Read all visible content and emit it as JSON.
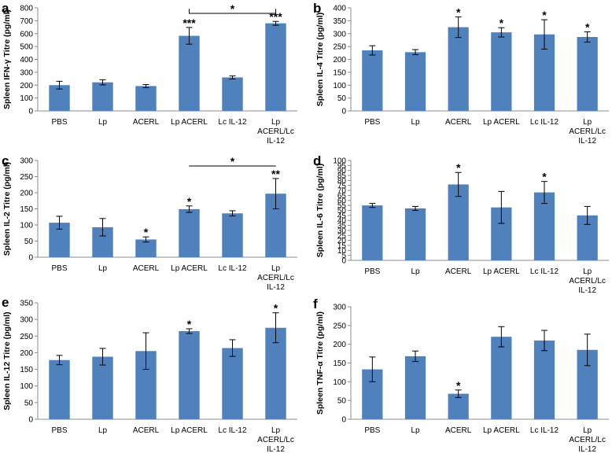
{
  "chart_data": [
    {
      "panel": "a",
      "type": "bar",
      "ylabel": "Spleen IFN-γ Titre (pg/ml)",
      "ylim": [
        0,
        800
      ],
      "yticks": [
        "0",
        "100",
        "200",
        "300",
        "400",
        "500",
        "600",
        "700",
        "800"
      ],
      "categories": [
        [
          "PBS"
        ],
        [
          "Lp"
        ],
        [
          "ACERL"
        ],
        [
          "Lp ACERL"
        ],
        [
          "Lc IL-12"
        ],
        [
          "Lp",
          "ACERL/Lc",
          "IL-12"
        ]
      ],
      "values": [
        200,
        222,
        193,
        583,
        260,
        680
      ],
      "errors": [
        30,
        20,
        12,
        65,
        12,
        15
      ],
      "stars": [
        "",
        "",
        "",
        "***",
        "",
        "***"
      ],
      "bracket": {
        "from": 3,
        "to": 5,
        "label": "*"
      },
      "color": "#4f81bd"
    },
    {
      "panel": "b",
      "type": "bar",
      "ylabel": "Spleen IL-4 Titre (pg/ml)",
      "ylim": [
        0,
        400
      ],
      "yticks": [
        "0",
        "50",
        "100",
        "150",
        "200",
        "250",
        "300",
        "350",
        "400"
      ],
      "categories": [
        [
          "PBS"
        ],
        [
          "Lp"
        ],
        [
          "ACERL"
        ],
        [
          "Lp ACERL"
        ],
        [
          "Lc IL-12"
        ],
        [
          "Lp",
          "ACERL/Lc",
          "IL-12"
        ]
      ],
      "values": [
        235,
        228,
        325,
        305,
        297,
        287
      ],
      "errors": [
        18,
        10,
        40,
        18,
        57,
        20
      ],
      "stars": [
        "",
        "",
        "*",
        "*",
        "*",
        "*"
      ],
      "bracket": null,
      "color": "#4f81bd"
    },
    {
      "panel": "c",
      "type": "bar",
      "ylabel": "Spleen IL-2 Titre (pg/ml)",
      "ylim": [
        0,
        300
      ],
      "yticks": [
        "0",
        "50",
        "100",
        "150",
        "200",
        "250",
        "300"
      ],
      "categories": [
        [
          "PBS"
        ],
        [
          "Lp"
        ],
        [
          "ACERL"
        ],
        [
          "Lp ACERL"
        ],
        [
          "Lc IL-12"
        ],
        [
          "Lp",
          "ACERL/Lc",
          "IL-12"
        ]
      ],
      "values": [
        107,
        93,
        55,
        149,
        136,
        197
      ],
      "errors": [
        20,
        27,
        8,
        10,
        8,
        47
      ],
      "stars": [
        "",
        "",
        "*",
        "*",
        "",
        "**"
      ],
      "bracket": {
        "from": 3,
        "to": 5,
        "label": "*"
      },
      "color": "#4f81bd"
    },
    {
      "panel": "d",
      "type": "bar",
      "ylabel": "Spleen IL-6 Titre (pg/ml)",
      "ylim": [
        0,
        100
      ],
      "yticks": [
        "0",
        "5",
        "10",
        "15",
        "20",
        "25",
        "30",
        "35",
        "40",
        "45",
        "50",
        "55",
        "60",
        "65",
        "70",
        "75",
        "80",
        "85",
        "90",
        "95",
        "100"
      ],
      "categories": [
        [
          "PBS"
        ],
        [
          "Lp"
        ],
        [
          "ACERL"
        ],
        [
          "Lp ACERL"
        ],
        [
          "Lc IL-12"
        ],
        [
          "Lp",
          "ACERL/Lc",
          "IL-12"
        ]
      ],
      "values": [
        55,
        52,
        76,
        53,
        68,
        45
      ],
      "errors": [
        2,
        2,
        12,
        16,
        11,
        9
      ],
      "stars": [
        "",
        "",
        "*",
        "",
        "*",
        ""
      ],
      "bracket": null,
      "color": "#4f81bd"
    },
    {
      "panel": "e",
      "type": "bar",
      "ylabel": "Spleen IL-12 Titre (pg/ml)",
      "ylim": [
        0,
        350
      ],
      "yticks": [
        "0",
        "50",
        "100",
        "150",
        "200",
        "250",
        "300",
        "350"
      ],
      "categories": [
        [
          "PBS"
        ],
        [
          "Lp"
        ],
        [
          "ACERL"
        ],
        [
          "Lp ACERL"
        ],
        [
          "Lc IL-12"
        ],
        [
          "Lp",
          "ACERL/Lc",
          "IL-12"
        ]
      ],
      "values": [
        178,
        188,
        205,
        265,
        214,
        275
      ],
      "errors": [
        14,
        25,
        55,
        7,
        25,
        45
      ],
      "stars": [
        "",
        "",
        "",
        "*",
        "",
        "*"
      ],
      "bracket": null,
      "color": "#4f81bd"
    },
    {
      "panel": "f",
      "type": "bar",
      "ylabel": "Spleen TNF-α Titre (pg/ml)",
      "ylim": [
        0,
        300
      ],
      "yticks": [
        "0",
        "50",
        "100",
        "150",
        "200",
        "250",
        "300"
      ],
      "categories": [
        [
          "PBS"
        ],
        [
          "Lp"
        ],
        [
          "ACERL"
        ],
        [
          "Lp ACERL"
        ],
        [
          "Lc IL-12"
        ],
        [
          "Lp",
          "ACERL/Lc",
          "IL-12"
        ]
      ],
      "values": [
        133,
        168,
        68,
        220,
        210,
        185
      ],
      "errors": [
        33,
        14,
        10,
        27,
        27,
        42
      ],
      "stars": [
        "",
        "",
        "*",
        "",
        "",
        ""
      ],
      "bracket": null,
      "color": "#4f81bd"
    }
  ]
}
